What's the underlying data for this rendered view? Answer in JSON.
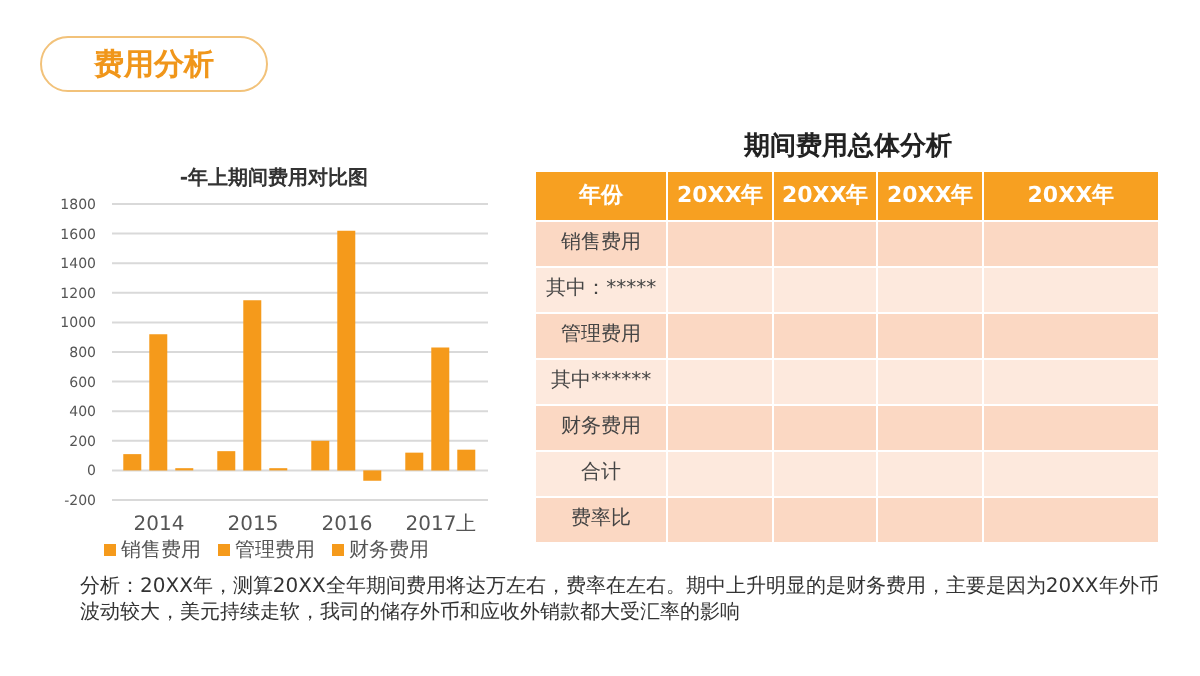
{
  "chart_data": [
    {
      "type": "bar",
      "title": "-年上期间费用对比图",
      "categories": [
        "2014",
        "2015",
        "2016",
        "2017上"
      ],
      "series": [
        {
          "name": "销售费用",
          "color": "#f59a1b",
          "values": [
            110,
            130,
            200,
            120
          ]
        },
        {
          "name": "管理费用",
          "color": "#f59a1b",
          "values": [
            920,
            1150,
            1620,
            830
          ]
        },
        {
          "name": "财务费用",
          "color": "#f59a1b",
          "values": [
            15,
            15,
            -70,
            140
          ]
        }
      ],
      "ylim": [
        -200,
        1800
      ],
      "yticks": [
        -200,
        0,
        200,
        400,
        600,
        800,
        1000,
        1200,
        1400,
        1600,
        1800
      ],
      "grid": "y",
      "legend": "bottom",
      "annotations": [
        "费用分析",
        "分析：20XX年，测算20XX全年期间费用将达万左右，费率在左右。期中上升明显的是财务费用，主要是因为20XX年外币波动较大，美元持续走软，我司的储存外币和应收外销款都大受汇率的影响"
      ]
    },
    {
      "type": "other",
      "title": "期间费用总体分析",
      "categories": [
        "年份",
        "20XX年",
        "20XX年",
        "20XX年",
        "20XX年"
      ],
      "y_categories": [
        "销售费用",
        "其中：*****",
        "管理费用",
        "其中******",
        "财务费用",
        "合计",
        "费率比"
      ]
    }
  ]
}
